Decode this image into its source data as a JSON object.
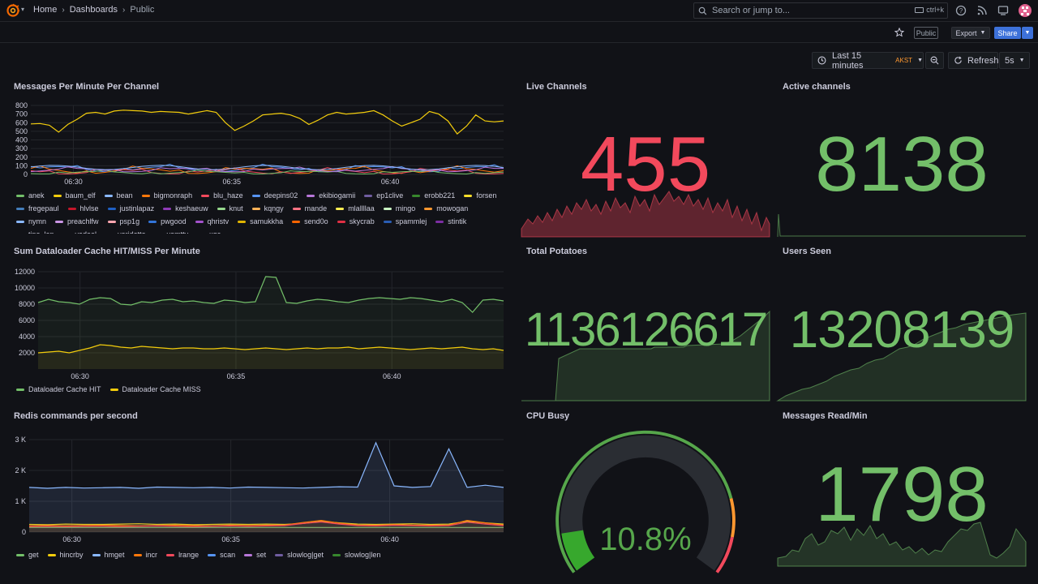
{
  "nav": {
    "breadcrumbs": [
      "Home",
      "Dashboards",
      "Public"
    ],
    "search_placeholder": "Search or jump to...",
    "search_shortcut": "ctrl+k",
    "public_badge": "Public",
    "export_label": "Export",
    "share_label": "Share"
  },
  "timepicker": {
    "range": "Last 15 minutes",
    "tz": "AKST",
    "refresh_label": "Refresh",
    "interval": "5s"
  },
  "panels": {
    "messages_per_minute": {
      "title": "Messages Per Minute Per Channel"
    },
    "dataloader": {
      "title": "Sum Dataloader Cache HIT/MISS Per Minute"
    },
    "redis": {
      "title": "Redis commands per second"
    },
    "live_channels": {
      "title": "Live Channels",
      "value": "455",
      "color": "#f2495c"
    },
    "active_channels": {
      "title": "Active channels",
      "value": "8138",
      "color": "#73bf69"
    },
    "total_potatoes": {
      "title": "Total Potatoes",
      "value": "1136126617",
      "color": "#73bf69"
    },
    "users_seen": {
      "title": "Users Seen",
      "value": "13208139",
      "color": "#73bf69"
    },
    "cpu_busy": {
      "title": "CPU Busy",
      "value": "10.8%",
      "percent": 10.8,
      "color": "#37872d"
    },
    "messages_read": {
      "title": "Messages Read/Min",
      "value": "1798",
      "color": "#73bf69"
    }
  },
  "chart_data": [
    {
      "type": "line",
      "title": "Messages Per Minute Per Channel",
      "x_ticks": [
        "06:30",
        "06:35",
        "06:40"
      ],
      "y_ticks": [
        "0",
        "100",
        "200",
        "300",
        "400",
        "500",
        "600",
        "700",
        "800"
      ],
      "ylim": [
        0,
        800
      ],
      "legend": [
        "anek",
        "baum_elf",
        "bean",
        "bigmonraph",
        "blu_haze",
        "deepins02",
        "ekibiogamii",
        "ep1clive",
        "erobb221",
        "forsen",
        "fregepaul",
        "hlvlse",
        "justinlapaz",
        "keshaeuw",
        "knut",
        "kqngy",
        "mande",
        "mlallllaa",
        "mingo",
        "mowogan",
        "nymn",
        "preachlfw",
        "psp1g",
        "pwgood",
        "qhristv",
        "samukkha",
        "send0o",
        "skycrab",
        "spammlej",
        "stintik",
        "tipo_lon",
        "vadeal",
        "varidetta",
        "vomttv",
        "xqc"
      ],
      "legend_colors": [
        "#73bf69",
        "#f2cc0c",
        "#8ab8ff",
        "#ff780a",
        "#f2495c",
        "#5794f2",
        "#b877d9",
        "#705da0",
        "#37872d",
        "#fade2a",
        "#447ebc",
        "#c4162a",
        "#1f60c4",
        "#8f3bb8",
        "#96d98d",
        "#ffb357",
        "#ff7383",
        "#ffee52",
        "#c8f2c2",
        "#ff9830",
        "#8ab8ff",
        "#ca95e5",
        "#ffa6b0",
        "#3274d9",
        "#a352cc",
        "#e0b400",
        "#fa6400",
        "#e02f44",
        "#2a5db3",
        "#7c2ea3",
        "#56a64b",
        "#f2cc0c",
        "#ccccdc",
        "#fade2a",
        "#8ab8ff"
      ],
      "series_main": [
        585,
        590,
        570,
        490,
        580,
        640,
        710,
        720,
        700,
        735,
        745,
        740,
        735,
        720,
        730,
        725,
        720,
        700,
        720,
        740,
        720,
        600,
        510,
        560,
        620,
        690,
        700,
        710,
        690,
        650,
        580,
        630,
        690,
        720,
        700,
        710,
        720,
        740,
        690,
        620,
        560,
        600,
        640,
        730,
        700,
        620,
        470,
        560,
        690,
        620,
        610,
        620
      ]
    },
    {
      "type": "line",
      "title": "Sum Dataloader Cache HIT/MISS Per Minute",
      "x_ticks": [
        "06:30",
        "06:35",
        "06:40"
      ],
      "y_ticks": [
        "2000",
        "4000",
        "6000",
        "8000",
        "10000",
        "12000"
      ],
      "ylim": [
        0,
        12000
      ],
      "series": [
        {
          "name": "Dataloader Cache HIT",
          "color": "#73bf69",
          "values": [
            8200,
            8600,
            8300,
            8200,
            8000,
            8600,
            8800,
            8700,
            8000,
            7900,
            8300,
            8200,
            8500,
            8600,
            8300,
            8400,
            8200,
            8100,
            8500,
            8400,
            8200,
            8300,
            11400,
            11300,
            8200,
            8100,
            8400,
            8600,
            8500,
            8300,
            8200,
            8500,
            8700,
            8800,
            8700,
            8600,
            8800,
            8700,
            8500,
            8300,
            8600,
            8200,
            7000,
            8500,
            8600,
            8400
          ]
        },
        {
          "name": "Dataloader Cache MISS",
          "color": "#f2cc0c",
          "values": [
            2000,
            2100,
            2200,
            2000,
            2300,
            2600,
            3000,
            2900,
            2700,
            2600,
            2800,
            2700,
            2600,
            2500,
            2600,
            2600,
            2500,
            2500,
            2600,
            2500,
            2400,
            2500,
            2600,
            2500,
            2400,
            2500,
            2600,
            2500,
            2600,
            2600,
            2700,
            2500,
            2600,
            2700,
            2600,
            2500,
            2400,
            2500,
            2600,
            2500,
            2600,
            2700,
            2500,
            2400,
            2500,
            2300
          ]
        }
      ]
    },
    {
      "type": "area",
      "title": "Redis commands per second",
      "x_ticks": [
        "06:30",
        "06:35",
        "06:40"
      ],
      "y_ticks": [
        "0",
        "1 K",
        "2 K",
        "3 K"
      ],
      "ylim": [
        0,
        3000
      ],
      "series": [
        {
          "name": "get",
          "color": "#73bf69",
          "values": [
            150,
            150,
            150,
            150,
            150,
            150,
            150,
            150,
            150,
            150,
            150,
            150,
            150,
            150,
            150,
            150,
            150,
            150,
            150,
            150,
            150,
            150,
            150,
            150,
            150,
            150,
            150
          ]
        },
        {
          "name": "hincrby",
          "color": "#f2cc0c",
          "values": [
            250,
            240,
            260,
            250,
            250,
            260,
            270,
            250,
            260,
            240,
            250,
            260,
            250,
            260,
            250,
            280,
            350,
            300,
            260,
            250,
            260,
            270,
            250,
            260,
            350,
            300,
            260
          ]
        },
        {
          "name": "hmget",
          "color": "#8ab8ff",
          "values": [
            1450,
            1420,
            1450,
            1430,
            1440,
            1450,
            1420,
            1460,
            1450,
            1440,
            1450,
            1430,
            1460,
            1450,
            1440,
            1430,
            1450,
            1470,
            1460,
            2900,
            1500,
            1450,
            1480,
            2700,
            1450,
            1520,
            1450
          ]
        },
        {
          "name": "incr",
          "color": "#ff780a",
          "values": [
            200,
            210,
            200,
            210,
            220,
            210,
            200,
            210,
            220,
            210,
            200,
            220,
            210,
            220,
            230,
            310,
            380,
            290,
            230,
            220,
            240,
            230,
            220,
            230,
            380,
            300,
            230
          ]
        },
        {
          "name": "lrange",
          "color": "#f2495c",
          "values": [
            180,
            190,
            180,
            190,
            190,
            180,
            190,
            200,
            190,
            180,
            190,
            200,
            190,
            200,
            210,
            280,
            330,
            260,
            210,
            200,
            220,
            210,
            200,
            210,
            320,
            260,
            210
          ]
        },
        {
          "name": "scan",
          "color": "#5794f2",
          "values": []
        },
        {
          "name": "set",
          "color": "#b877d9",
          "values": []
        },
        {
          "name": "slowlog|get",
          "color": "#705da0",
          "values": []
        },
        {
          "name": "slowlog|len",
          "color": "#37872d",
          "values": []
        }
      ]
    }
  ]
}
